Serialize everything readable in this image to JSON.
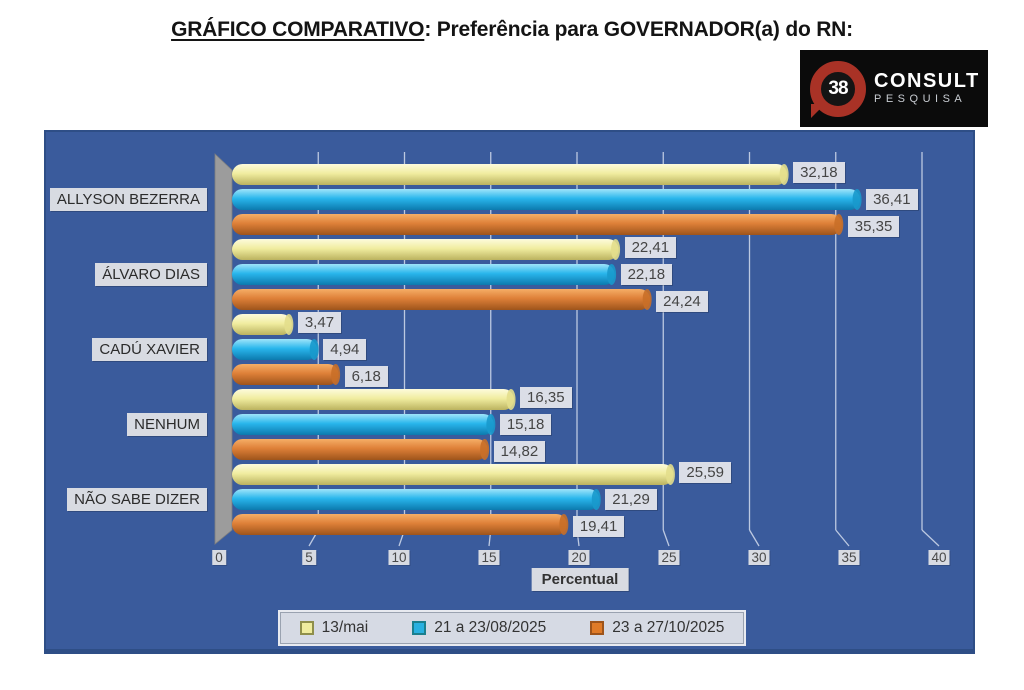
{
  "title": {
    "underlined": "GRÁFICO COMPARATIVO",
    "rest": ": Preferência para GOVERNADOR(a) do RN:"
  },
  "logo": {
    "badge": "38",
    "line1": "CONSULT",
    "line2": "PESQUISA"
  },
  "colors": {
    "chart_bg": "#3A5B9C",
    "chart_border": "#2E4E86",
    "wall": "#9C9C9C",
    "wall_edge": "#7F7F7F",
    "gridline": "#CBD5E9",
    "label_box": "#DBDEE7",
    "label_text": "#454545"
  },
  "chart_data": {
    "type": "bar",
    "orientation": "horizontal",
    "title": "GRÁFICO COMPARATIVO: Preferência para GOVERNADOR(a) do RN",
    "categories": [
      "ALLYSON BEZERRA",
      "ÁLVARO DIAS",
      "CADÚ XAVIER",
      "NENHUM",
      "NÃO SABE DIZER"
    ],
    "series": [
      {
        "name": "13/mai",
        "values": [
          32.18,
          22.41,
          3.47,
          16.35,
          25.59
        ],
        "value_labels": [
          "32,18",
          "22,41",
          "3,47",
          "16,35",
          "25,59"
        ],
        "gradient": [
          "#FDFBDC",
          "#F1EDA0",
          "#BBB35F"
        ],
        "cap": "#E3DE8C",
        "swatch": "#EFEC9E",
        "swatch_border": "#8F8F4B"
      },
      {
        "name": "21 a 23/08/2025",
        "values": [
          36.41,
          22.18,
          4.94,
          15.18,
          21.29
        ],
        "value_labels": [
          "36,41",
          "22,18",
          "4,94",
          "15,18",
          "21,29"
        ],
        "gradient": [
          "#9FE5FA",
          "#29B6EC",
          "#0C7AAE"
        ],
        "cap": "#1899CC",
        "swatch": "#29B0E0",
        "swatch_border": "#1B7F8E"
      },
      {
        "name": "23 a 27/10/2025",
        "values": [
          35.35,
          24.24,
          6.18,
          14.82,
          19.41
        ],
        "value_labels": [
          "35,35",
          "24,24",
          "6,18",
          "14,82",
          "19,41"
        ],
        "gradient": [
          "#F5AE67",
          "#DE8038",
          "#9E541B"
        ],
        "cap": "#C96F28",
        "swatch": "#E07B28",
        "swatch_border": "#9E541B"
      }
    ],
    "xlabel": "Percentual",
    "xticks": [
      0,
      5,
      10,
      15,
      20,
      25,
      30,
      35,
      40
    ],
    "xlim": [
      0,
      40
    ],
    "legend_position": "bottom",
    "grid": true
  }
}
